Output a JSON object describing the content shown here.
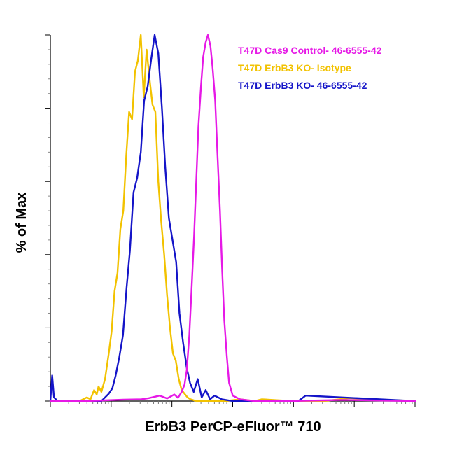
{
  "chart_data": {
    "type": "line",
    "title": "",
    "xlabel": "ErbB3 PerCP-eFluor™ 710",
    "ylabel": "% of Max",
    "xlim": [
      0,
      100
    ],
    "ylim": [
      0,
      100
    ],
    "x_scale": "log",
    "grid": false,
    "legend_position": "top-right",
    "series": [
      {
        "name": "T47D Cas9 Control- 46-6555-42",
        "color": "#e619e6",
        "x": [
          0,
          10,
          20,
          25,
          27,
          30,
          32,
          34,
          35,
          36,
          36.8,
          37.4,
          38.1,
          38.7,
          39.4,
          40,
          40.6,
          41.3,
          41.9,
          42.6,
          43.2,
          43.9,
          44.5,
          45.2,
          45.8,
          46.5,
          47.1,
          47.7,
          48.4,
          49,
          50,
          52,
          56,
          65,
          80,
          100
        ],
        "y": [
          0,
          0,
          0.4,
          0.5,
          0.8,
          1.5,
          0.7,
          1.8,
          0.9,
          2.5,
          4.5,
          8.5,
          18,
          30,
          45,
          60,
          75,
          86,
          94,
          98,
          100,
          97,
          91,
          82,
          68,
          52,
          36,
          22,
          12,
          5,
          1.5,
          0.5,
          0,
          0,
          0.3,
          0
        ]
      },
      {
        "name": "T47D ErbB3 KO- Isotype",
        "color": "#f2c200",
        "x": [
          0,
          8,
          10,
          11,
          12,
          12.7,
          13.2,
          14,
          15,
          16,
          16.8,
          17.6,
          18.4,
          19.2,
          20,
          20.8,
          21.6,
          22.4,
          23.2,
          24,
          24.8,
          25.6,
          26.4,
          27.2,
          28,
          28.8,
          29.6,
          30.4,
          31.2,
          32,
          32.8,
          33.6,
          34.4,
          35.2,
          36,
          36.8,
          37.6,
          38.4,
          40,
          43,
          48,
          52,
          56,
          58,
          66,
          75,
          82,
          100
        ],
        "y": [
          0,
          0,
          1,
          0.5,
          3,
          1.8,
          4,
          2.5,
          6,
          13,
          19,
          30,
          35,
          47,
          52,
          67,
          79,
          77,
          90,
          93,
          100,
          83,
          96,
          88,
          81,
          79,
          60,
          49,
          40,
          29,
          20,
          13,
          11,
          6,
          3,
          2,
          1,
          0.5,
          0,
          0,
          0,
          0.5,
          0,
          0.5,
          0,
          0,
          0.8,
          0
        ]
      },
      {
        "name": "T47D ErbB3 KO- 46-6555-42",
        "color": "#1414c8",
        "x": [
          0,
          0.5,
          1,
          2,
          10,
          14,
          15,
          16,
          17,
          17.9,
          18.9,
          19.9,
          20.9,
          21.8,
          22.8,
          23.8,
          24.8,
          25.7,
          26.7,
          27.6,
          28.6,
          29.6,
          30.6,
          31.5,
          32.5,
          33.5,
          34.5,
          35.4,
          36.4,
          37.4,
          38.3,
          39.3,
          40.4,
          41.5,
          42.6,
          43.8,
          45,
          47,
          50,
          60,
          68,
          70,
          100
        ],
        "y": [
          0,
          7,
          1,
          0,
          0,
          0,
          1,
          2,
          3.5,
          7,
          12,
          18,
          31,
          41,
          57,
          61,
          68,
          82,
          86,
          93,
          100,
          95,
          80,
          64,
          50,
          44,
          38,
          24,
          16,
          9,
          5,
          2.5,
          6,
          1,
          3,
          0.5,
          1.5,
          0.5,
          0,
          0,
          0,
          1.5,
          0
        ]
      }
    ]
  }
}
